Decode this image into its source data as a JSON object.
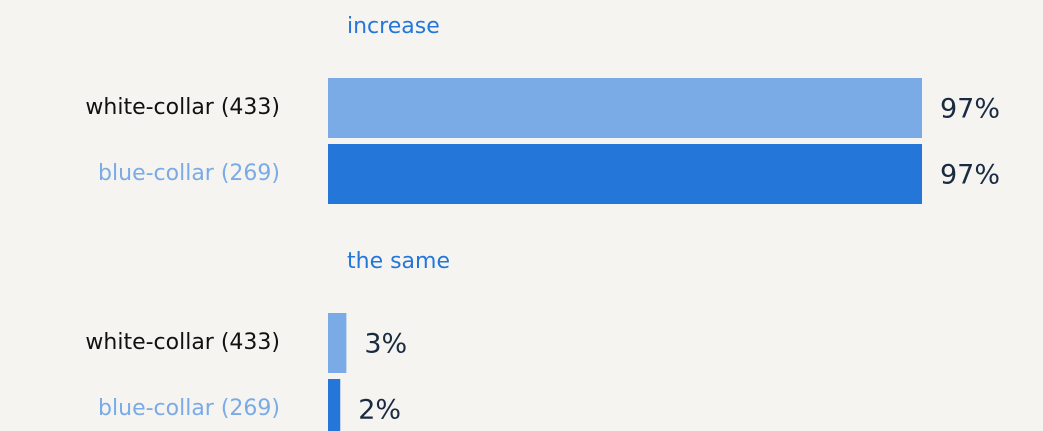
{
  "chart_data": {
    "type": "bar",
    "orientation": "horizontal",
    "categories": [
      "increase",
      "the same"
    ],
    "series": [
      {
        "name": "white-collar (433)",
        "color": "#7aabe6",
        "values": [
          97,
          3
        ],
        "value_labels": [
          "97%",
          "3%"
        ]
      },
      {
        "name": "blue-collar (269)",
        "color": "#2477d9",
        "values": [
          97,
          2
        ],
        "value_labels": [
          "97%",
          "2%"
        ]
      }
    ]
  }
}
